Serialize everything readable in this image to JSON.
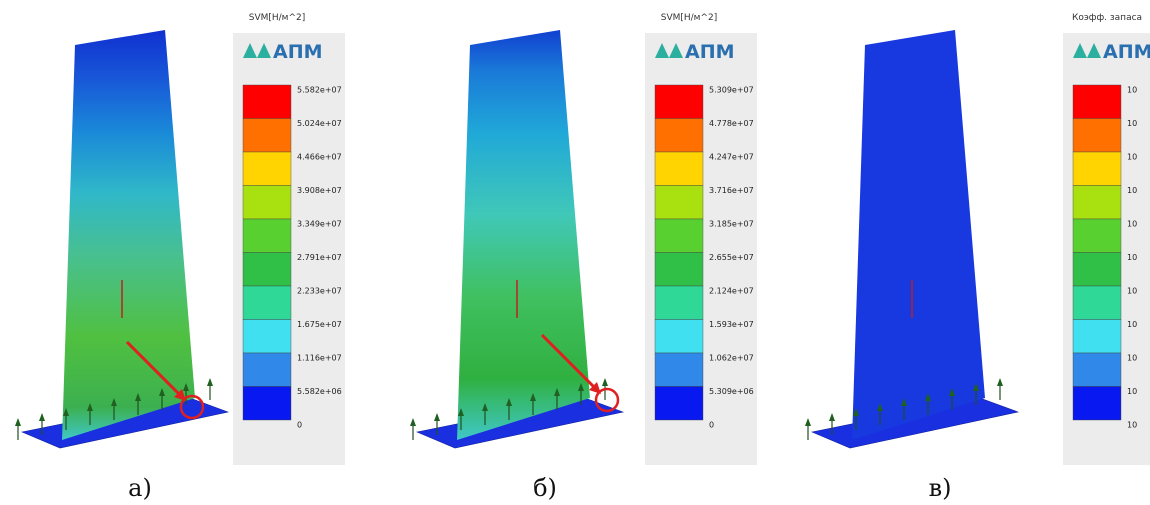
{
  "panels": [
    {
      "scale_title": "SVM[Н/м^2]",
      "logo": "АПМ",
      "caption": "а)",
      "scale_labels": [
        "5.582e+07",
        "5.024e+07",
        "4.466e+07",
        "3.908e+07",
        "3.349e+07",
        "2.791e+07",
        "2.233e+07",
        "1.675e+07",
        "1.116e+07",
        "5.582e+06",
        "0"
      ]
    },
    {
      "scale_title": "SVM[Н/м^2]",
      "logo": "АПМ",
      "caption": "б)",
      "scale_labels": [
        "5.309e+07",
        "4.778e+07",
        "4.247e+07",
        "3.716e+07",
        "3.185e+07",
        "2.655e+07",
        "2.124e+07",
        "1.593e+07",
        "1.062e+07",
        "5.309e+06",
        "0"
      ]
    },
    {
      "scale_title": "Коэфф. запаса",
      "logo": "АПМ",
      "caption": "в)",
      "scale_labels": [
        "10",
        "10",
        "10",
        "10",
        "10",
        "10",
        "10",
        "10",
        "10",
        "10",
        "10"
      ]
    }
  ]
}
